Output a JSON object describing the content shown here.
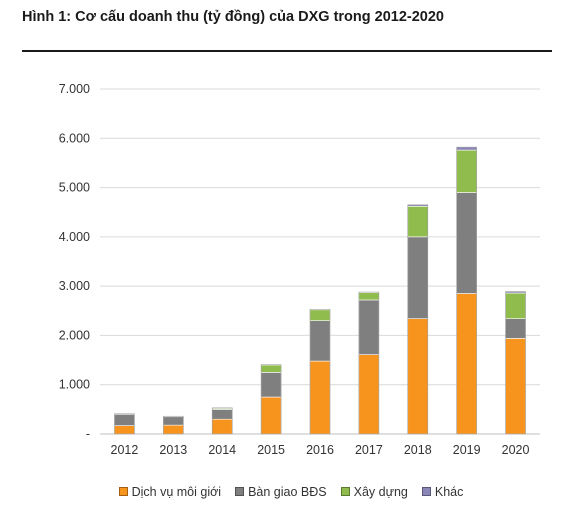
{
  "figure": {
    "title": "Hình 1: Cơ cấu doanh thu (tỷ đồng) của DXG trong 2012-2020"
  },
  "chart_data": {
    "type": "bar",
    "stacked": true,
    "title": "",
    "xlabel": "",
    "ylabel": "",
    "ylim": [
      0,
      7000
    ],
    "yticks": [
      "-",
      "1.000",
      "2.000",
      "3.000",
      "4.000",
      "5.000",
      "6.000",
      "7.000"
    ],
    "grid": true,
    "legend_position": "bottom",
    "categories": [
      "2012",
      "2013",
      "2014",
      "2015",
      "2016",
      "2017",
      "2018",
      "2019",
      "2020"
    ],
    "series": [
      {
        "name": "Dịch vụ môi giới",
        "color": "#f7941d",
        "values": [
          170,
          180,
          300,
          750,
          1480,
          1610,
          2340,
          2850,
          1940
        ]
      },
      {
        "name": "Bàn giao BĐS",
        "color": "#7f7f7f",
        "values": [
          230,
          170,
          200,
          500,
          820,
          1110,
          1660,
          2050,
          400
        ]
      },
      {
        "name": "Xây dựng",
        "color": "#8fbc4c",
        "values": [
          0,
          0,
          20,
          150,
          220,
          150,
          620,
          860,
          520
        ]
      },
      {
        "name": "Khác",
        "color": "#8a86b8",
        "values": [
          10,
          10,
          10,
          5,
          10,
          10,
          30,
          60,
          30
        ]
      }
    ]
  }
}
